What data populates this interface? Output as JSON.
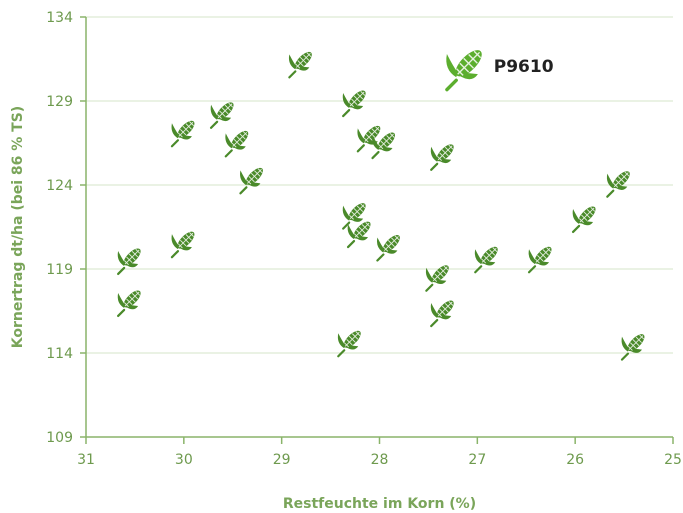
{
  "chart_data": {
    "type": "scatter",
    "title": "",
    "xlabel": "Restfeuchte im Korn (%)",
    "ylabel": "Kornertrag dt/ha (bei 86 % TS)",
    "xlim": [
      31,
      25
    ],
    "ylim": [
      109,
      134
    ],
    "x_reversed": true,
    "xticks": [
      31,
      30,
      29,
      28,
      27,
      26,
      25
    ],
    "yticks": [
      109,
      114,
      119,
      124,
      129,
      134
    ],
    "grid": "horizontal",
    "marker": "corn-icon",
    "colors": {
      "marker": "#4a8a2a",
      "highlight": "#5cae2e",
      "axis": "#8ab46a",
      "grid": "#d6e6c8",
      "text": "#6e9a4e"
    },
    "series": [
      {
        "points": [
          [
            30.6,
            119.3
          ],
          [
            30.6,
            116.8
          ],
          [
            30.05,
            120.3
          ],
          [
            30.05,
            126.9
          ],
          [
            29.65,
            128.0
          ],
          [
            29.5,
            126.3
          ],
          [
            29.35,
            124.1
          ],
          [
            28.85,
            131.0
          ],
          [
            28.35,
            114.4
          ],
          [
            28.3,
            122.0
          ],
          [
            28.25,
            120.9
          ],
          [
            28.3,
            128.7
          ],
          [
            28.15,
            126.6
          ],
          [
            28.0,
            126.2
          ],
          [
            27.95,
            120.1
          ],
          [
            27.45,
            118.3
          ],
          [
            27.4,
            116.2
          ],
          [
            27.4,
            125.5
          ],
          [
            26.95,
            119.4
          ],
          [
            26.4,
            119.4
          ],
          [
            25.95,
            121.8
          ],
          [
            25.6,
            123.9
          ],
          [
            25.45,
            114.2
          ]
        ]
      },
      {
        "highlight": true,
        "points": [
          [
            27.2,
            130.6
          ]
        ]
      }
    ],
    "annotations": [
      {
        "text": "P9610",
        "x": 27.2,
        "y": 130.6
      }
    ]
  }
}
